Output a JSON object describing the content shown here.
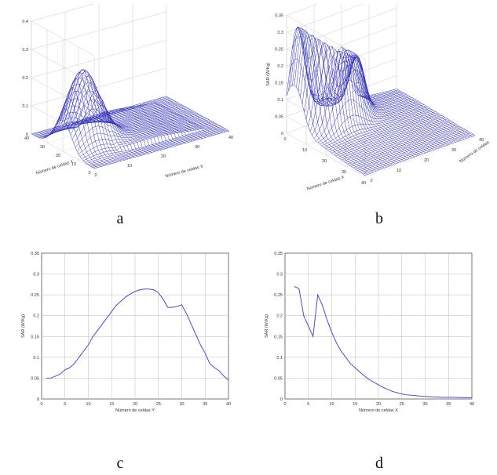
{
  "captions": {
    "a": "a",
    "b": "b",
    "c": "c",
    "d": "d"
  },
  "chart_data": [
    {
      "panel": "a",
      "type": "surface",
      "zlabel": "SAR (W/Kg)",
      "xlabel": "Número de celdas Y",
      "ylabel": "Número de celdas X",
      "zticks": [
        "0",
        "0.1",
        "0.2",
        "0.3",
        "0.4"
      ],
      "xticks": [
        "40",
        "30",
        "20",
        "10",
        "0"
      ],
      "yticks": [
        "0",
        "10",
        "20",
        "30",
        "40"
      ],
      "zlim": [
        0,
        0.4
      ],
      "color": "#2b2bb8"
    },
    {
      "panel": "b",
      "type": "surface",
      "zlabel": "SAR (W/Kg)",
      "xlabel": "Número de celdas X",
      "ylabel": "Número de celdas",
      "zticks": [
        "0",
        "0.05",
        "0.1",
        "0.15",
        "0.2",
        "0.25",
        "0.3",
        "0.35"
      ],
      "xticks": [
        "0",
        "10",
        "20",
        "30",
        "40"
      ],
      "yticks": [
        "40",
        "30",
        "20",
        "10",
        "0"
      ],
      "zlim": [
        0,
        0.35
      ],
      "color": "#2b2bb8"
    },
    {
      "panel": "c",
      "type": "line",
      "xlabel": "Número de celdas Y",
      "ylabel": "SAR (W/Kg)",
      "xlim": [
        0,
        40
      ],
      "ylim": [
        0,
        0.35
      ],
      "xticks": [
        0,
        5,
        10,
        15,
        20,
        25,
        30,
        35,
        40
      ],
      "yticks": [
        0,
        0.05,
        0.1,
        0.15,
        0.2,
        0.25,
        0.3,
        0.35
      ],
      "ytick_labels": [
        "0",
        "0.05",
        "0.1",
        "0.15",
        "0.2",
        "0.25",
        "0.3",
        "0.35"
      ],
      "color": "#4a4ad0",
      "series": [
        {
          "x": [
            1,
            2,
            3,
            4,
            5,
            6,
            7,
            8,
            9,
            10,
            11,
            12,
            13,
            14,
            15,
            16,
            17,
            18,
            19,
            20,
            21,
            22,
            23,
            24,
            25,
            26,
            27,
            28,
            29,
            30,
            31,
            32,
            33,
            34,
            35,
            36,
            37,
            38,
            39,
            40
          ],
          "y": [
            0.05,
            0.05,
            0.055,
            0.06,
            0.07,
            0.075,
            0.085,
            0.1,
            0.115,
            0.13,
            0.15,
            0.165,
            0.18,
            0.195,
            0.21,
            0.225,
            0.235,
            0.245,
            0.252,
            0.258,
            0.262,
            0.264,
            0.264,
            0.262,
            0.255,
            0.24,
            0.22,
            0.22,
            0.222,
            0.226,
            0.205,
            0.18,
            0.155,
            0.13,
            0.11,
            0.085,
            0.075,
            0.068,
            0.055,
            0.045
          ]
        }
      ]
    },
    {
      "panel": "d",
      "type": "line",
      "xlabel": "Número de celdas X",
      "ylabel": "SAR (W/Kg)",
      "xlim": [
        0,
        40
      ],
      "ylim": [
        0,
        0.35
      ],
      "xticks": [
        0,
        5,
        10,
        15,
        20,
        25,
        30,
        35,
        40
      ],
      "yticks": [
        0,
        0.05,
        0.1,
        0.15,
        0.2,
        0.25,
        0.3,
        0.35
      ],
      "ytick_labels": [
        "0",
        "0.05",
        "0.1",
        "0.15",
        "0.2",
        "0.25",
        "0.3",
        "0.35"
      ],
      "color": "#4a4ad0",
      "series": [
        {
          "x": [
            2,
            3,
            4,
            5,
            6,
            7,
            8,
            9,
            10,
            11,
            12,
            13,
            14,
            15,
            16,
            17,
            18,
            19,
            20,
            21,
            22,
            23,
            24,
            25,
            26,
            28,
            30,
            32,
            34,
            36,
            38,
            40
          ],
          "y": [
            0.27,
            0.265,
            0.2,
            0.175,
            0.15,
            0.25,
            0.225,
            0.19,
            0.16,
            0.135,
            0.115,
            0.1,
            0.085,
            0.075,
            0.065,
            0.055,
            0.047,
            0.04,
            0.034,
            0.028,
            0.023,
            0.018,
            0.015,
            0.012,
            0.01,
            0.008,
            0.006,
            0.005,
            0.004,
            0.004,
            0.003,
            0.003
          ]
        }
      ]
    }
  ]
}
